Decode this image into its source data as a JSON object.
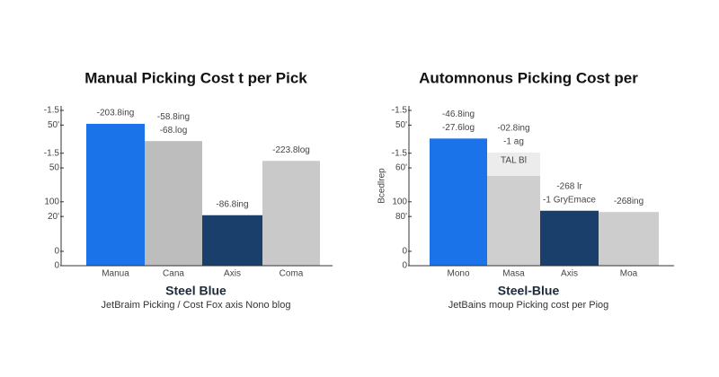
{
  "chart_data": [
    {
      "type": "bar",
      "title": "Manual Picking Cost t per Pick",
      "subtitle": "Steel Blue",
      "caption": "JetBraim Picking / Cost Fox axis Nono blog",
      "categories": [
        "Manua",
        "Cana",
        "Axis",
        "Coma"
      ],
      "values": [
        222,
        195,
        79,
        164
      ],
      "colors": [
        "#1a73e8",
        "#bdbdbd",
        "#1b3f6b",
        "#c9c9c9"
      ],
      "bar_labels": [
        [
          "-203.8ing"
        ],
        [
          "-58.8ing",
          "-68.log"
        ],
        [
          "-86.8ing"
        ],
        [
          "-223.8log"
        ]
      ],
      "ylim": [
        0,
        250
      ],
      "yticks": [
        0,
        {
          "value": 22.5,
          "label": "0"
        },
        {
          "value": 77,
          "label": "20'"
        },
        100,
        {
          "value": 153,
          "label": "50"
        },
        {
          "value": 176,
          "label": "-1.5"
        },
        {
          "value": 220,
          "label": "50'"
        },
        {
          "value": 243,
          "label": "-1.5"
        }
      ]
    },
    {
      "type": "bar",
      "title": "Automnonus Picking Cost per",
      "subtitle": "Steel-Blue",
      "caption": "JetBains moup Picking cost per Piog",
      "ylabel": "Bcedlrep",
      "categories": [
        "Mono",
        "Masa",
        "Axis",
        "Moa"
      ],
      "values": [
        199,
        177,
        86,
        84
      ],
      "colors": [
        "#1a73e8",
        "#cfcfcf",
        "#1b3f6b",
        "#cdcdcd"
      ],
      "bar_labels": [
        [
          "-46.8ing",
          "-27.6log"
        ],
        [
          "-02.8ing",
          "-1 ag"
        ],
        [
          "-268 lr",
          "-1 GryEmace"
        ],
        [
          "-268ing"
        ]
      ],
      "inner_label": "TAL Bl",
      "ylim": [
        0,
        250
      ],
      "yticks": [
        0,
        {
          "value": 22.5,
          "label": "0"
        },
        {
          "value": 77,
          "label": "80'"
        },
        100,
        {
          "value": 153,
          "label": "60'"
        },
        {
          "value": 176,
          "label": "-1.5"
        },
        {
          "value": 220,
          "label": "50'"
        },
        {
          "value": 243,
          "label": "-1.5"
        }
      ]
    }
  ]
}
